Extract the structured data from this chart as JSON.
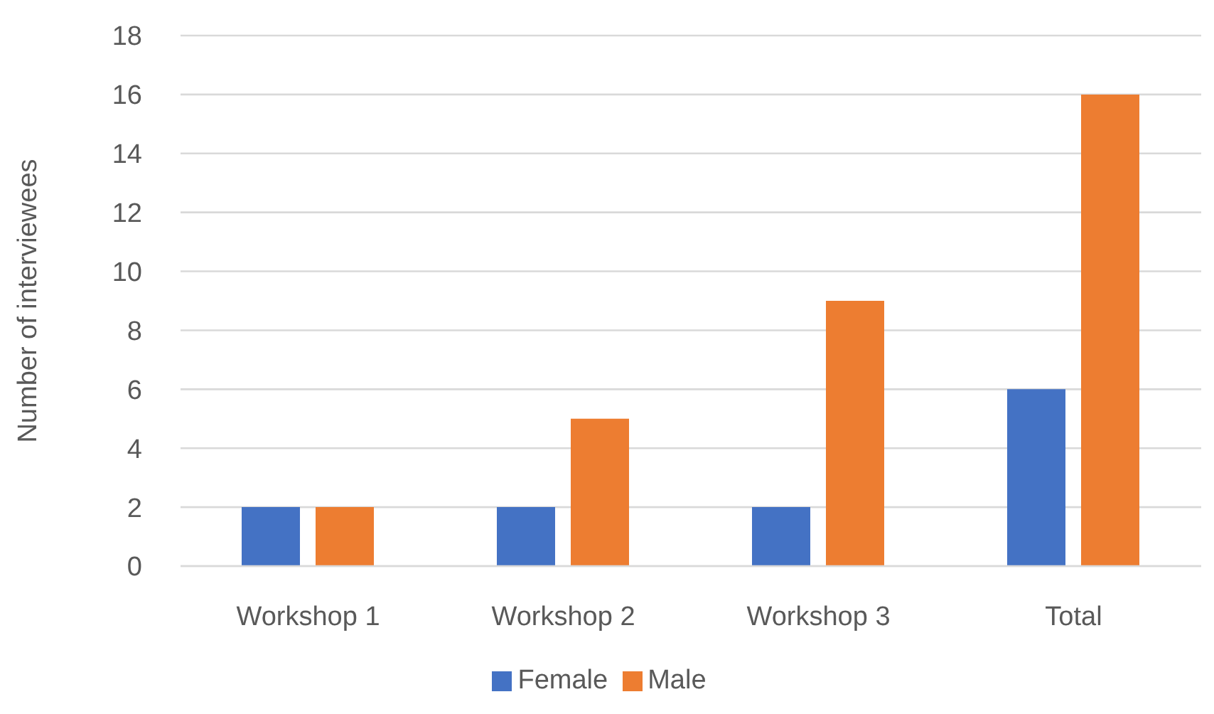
{
  "chart_data": {
    "type": "bar",
    "ylabel": "Number of interviewees",
    "categories": [
      "Workshop 1",
      "Workshop 2",
      "Workshop 3",
      "Total"
    ],
    "series": [
      {
        "name": "Female",
        "color": "#4472c4",
        "values": [
          2,
          2,
          2,
          6
        ]
      },
      {
        "name": "Male",
        "color": "#ed7d31",
        "values": [
          2,
          5,
          9,
          16
        ]
      }
    ],
    "ylim": [
      0,
      18
    ],
    "yticks": [
      0,
      2,
      4,
      6,
      8,
      10,
      12,
      14,
      16,
      18
    ],
    "grid": "y",
    "legend": "bottom"
  }
}
